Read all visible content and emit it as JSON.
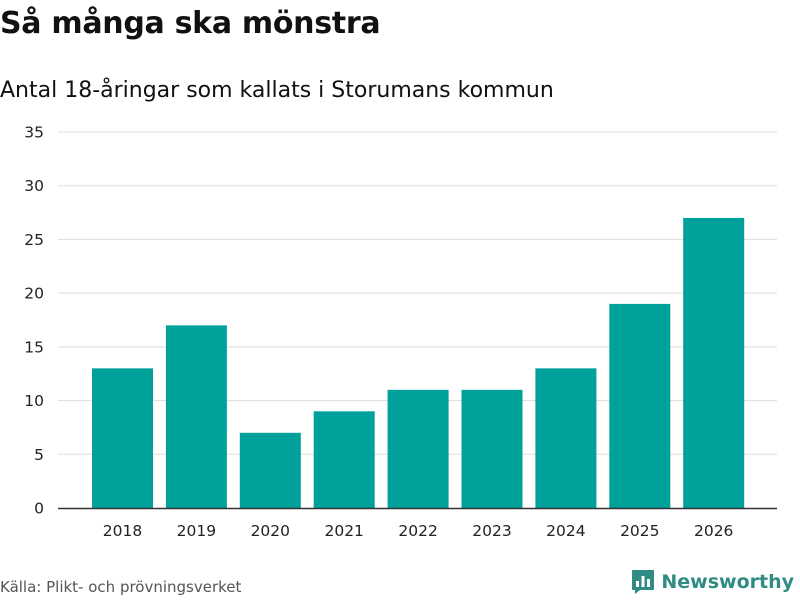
{
  "header": {
    "title": "Så många ska mönstra",
    "subtitle": "Antal 18-åringar som kallats i Storumans kommun"
  },
  "footer": {
    "source": "Källa: Plikt- och prövningsverket",
    "brand": "Newsworthy",
    "brand_icon": "bar-chart-logo-icon"
  },
  "colors": {
    "bar": "#00a19a",
    "grid": "#dddddd",
    "axis": "#333333",
    "brand": "#2f8b84"
  },
  "chart_data": {
    "type": "bar",
    "title": "Så många ska mönstra",
    "subtitle": "Antal 18-åringar som kallats i Storumans kommun",
    "xlabel": "",
    "ylabel": "",
    "categories": [
      "2018",
      "2019",
      "2020",
      "2021",
      "2022",
      "2023",
      "2024",
      "2025",
      "2026"
    ],
    "values": [
      13,
      17,
      7,
      9,
      11,
      11,
      13,
      19,
      27
    ],
    "ylim": [
      0,
      35
    ],
    "yticks": [
      0,
      5,
      10,
      15,
      20,
      25,
      30,
      35
    ],
    "grid": true,
    "legend": "none"
  }
}
